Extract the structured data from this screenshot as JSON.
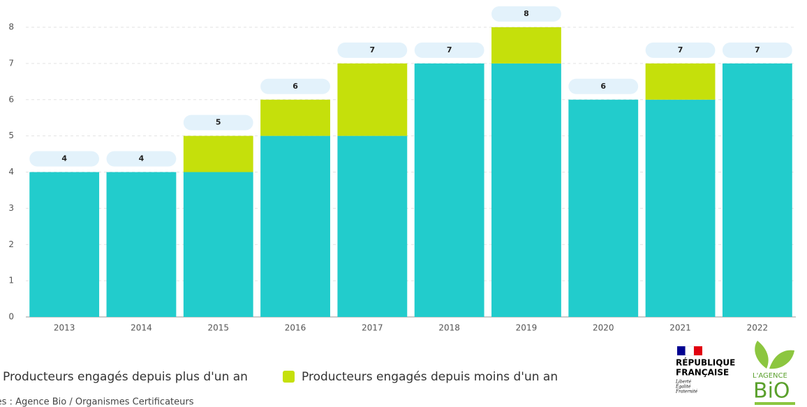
{
  "chart_data": {
    "type": "stacked-bar",
    "categories": [
      "2013",
      "2014",
      "2015",
      "2016",
      "2017",
      "2018",
      "2019",
      "2020",
      "2021",
      "2022"
    ],
    "series": [
      {
        "name": "Producteurs engagés depuis plus d'un an",
        "color": "#22cccc",
        "values": [
          4,
          4,
          4,
          5,
          5,
          7,
          7,
          6,
          6,
          7
        ]
      },
      {
        "name": "Producteurs engagés depuis moins d'un an",
        "color": "#c5e00b",
        "values": [
          0,
          0,
          1,
          1,
          2,
          0,
          1,
          0,
          1,
          0
        ]
      }
    ],
    "totals": [
      4,
      4,
      5,
      6,
      7,
      7,
      8,
      6,
      7,
      7
    ],
    "ylim": [
      0,
      8
    ],
    "yticks": [
      0,
      1,
      2,
      3,
      4,
      5,
      6,
      7,
      8
    ],
    "grid": true,
    "source": "Sources : Agence Bio / Organismes Certificateurs"
  },
  "logos": {
    "republique": [
      "RÉPUBLIQUE",
      "FRANÇAISE"
    ],
    "devise": [
      "Liberté",
      "Égalité",
      "Fraternité"
    ],
    "agence": [
      "L'AGENCE",
      "BiO"
    ]
  }
}
